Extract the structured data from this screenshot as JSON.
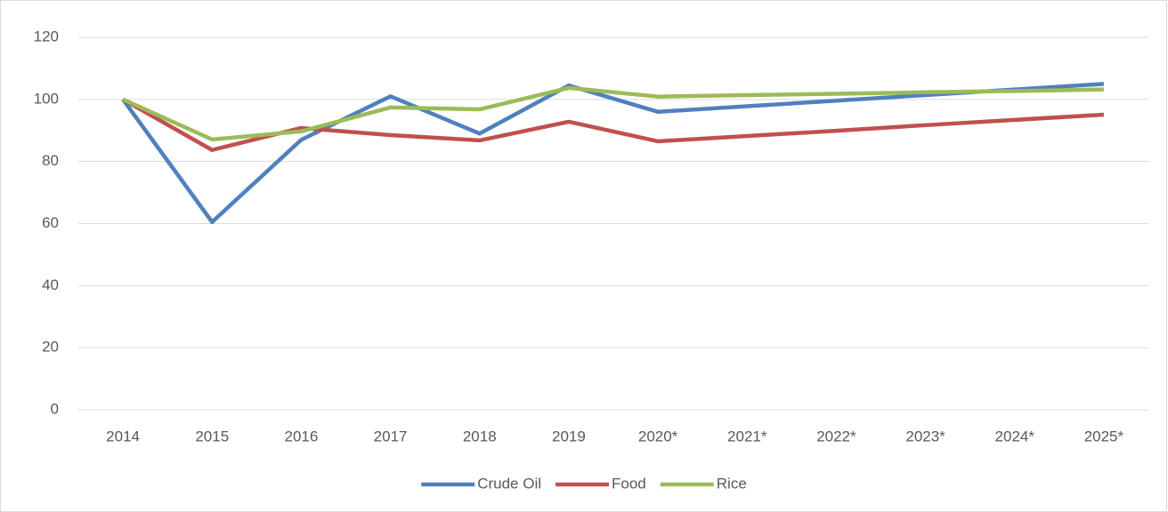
{
  "chart_data": {
    "type": "line",
    "categories": [
      "2014",
      "2015",
      "2016",
      "2017",
      "2018",
      "2019",
      "2020*",
      "2021*",
      "2022*",
      "2023*",
      "2024*",
      "2025*"
    ],
    "series": [
      {
        "name": "Crude Oil",
        "color": "#4f81bd",
        "values": [
          100,
          60.5,
          87,
          101,
          89,
          104.5,
          96,
          97.8,
          99.6,
          101.4,
          103.2,
          105
        ]
      },
      {
        "name": "Food",
        "color": "#c0504d",
        "values": [
          100,
          83.7,
          90.8,
          88.5,
          86.8,
          92.8,
          86.5,
          88.2,
          89.9,
          91.7,
          93.4,
          95.1
        ]
      },
      {
        "name": "Rice",
        "color": "#9bbb59",
        "values": [
          100,
          87.1,
          89.7,
          97.4,
          96.8,
          103.7,
          100.9,
          101.4,
          101.8,
          102.3,
          102.7,
          103.2
        ]
      }
    ],
    "ylim": [
      0,
      120
    ],
    "yticks": [
      0,
      20,
      40,
      60,
      80,
      100,
      120
    ],
    "grid": true,
    "legend": "bottom"
  }
}
